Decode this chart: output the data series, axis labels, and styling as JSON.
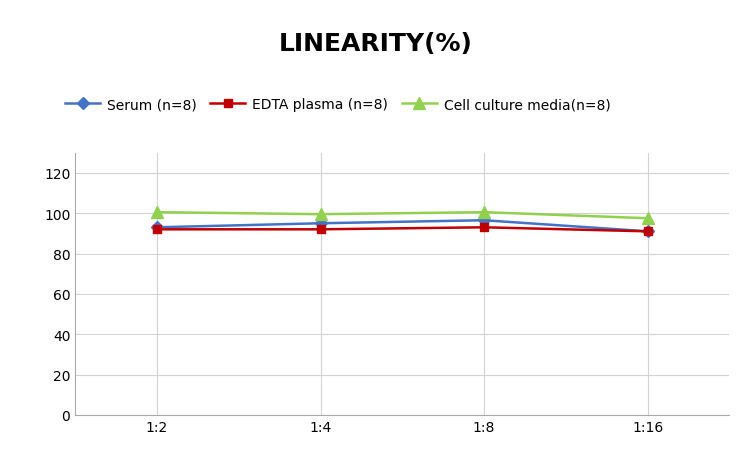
{
  "title": "LINEARITY(%)",
  "x_labels": [
    "1:2",
    "1:4",
    "1:8",
    "1:16"
  ],
  "x_values": [
    0,
    1,
    2,
    3
  ],
  "series": [
    {
      "label": "Serum (n=8)",
      "values": [
        93.0,
        95.0,
        96.5,
        91.0
      ],
      "color": "#4472C4",
      "marker": "D",
      "markersize": 6
    },
    {
      "label": "EDTA plasma (n=8)",
      "values": [
        92.0,
        92.0,
        93.0,
        91.0
      ],
      "color": "#C00000",
      "marker": "s",
      "markersize": 6
    },
    {
      "label": "Cell culture media(n=8)",
      "values": [
        100.5,
        99.5,
        100.5,
        97.5
      ],
      "color": "#92D050",
      "marker": "^",
      "markersize": 8
    }
  ],
  "ylim": [
    0,
    130
  ],
  "yticks": [
    0,
    20,
    40,
    60,
    80,
    100,
    120
  ],
  "grid_color": "#D3D3D3",
  "background_color": "#FFFFFF",
  "title_fontsize": 18,
  "legend_fontsize": 10,
  "tick_fontsize": 10
}
